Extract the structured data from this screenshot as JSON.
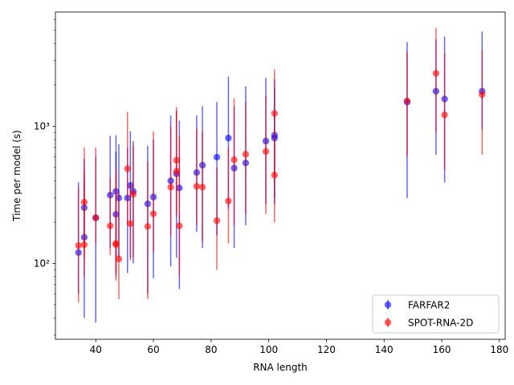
{
  "chart_data": {
    "type": "scatter",
    "title": "",
    "xlabel": "RNA length",
    "ylabel": "Time per model (s)",
    "xlim": [
      26,
      182
    ],
    "ylim": [
      28,
      6800
    ],
    "yscale": "log",
    "xticks": [
      40,
      60,
      80,
      100,
      120,
      140,
      160,
      180
    ],
    "yticks": [
      100,
      1000
    ],
    "ytick_labels": [
      "10²",
      "10³"
    ],
    "grid": false,
    "legend_position": "lower-right",
    "series": [
      {
        "name": "FARFAR2",
        "color": "#0000ff",
        "points": [
          {
            "x": 34,
            "y": 120,
            "lo": 60,
            "hi": 390
          },
          {
            "x": 36,
            "y": 255,
            "lo": 130,
            "hi": 420
          },
          {
            "x": 36,
            "y": 155,
            "lo": 40,
            "hi": 580
          },
          {
            "x": 40,
            "y": 215,
            "lo": 37,
            "hi": 600
          },
          {
            "x": 45,
            "y": 315,
            "lo": 130,
            "hi": 850
          },
          {
            "x": 47,
            "y": 335,
            "lo": 110,
            "hi": 860
          },
          {
            "x": 47,
            "y": 228,
            "lo": 80,
            "hi": 650
          },
          {
            "x": 48,
            "y": 300,
            "lo": 110,
            "hi": 740
          },
          {
            "x": 51,
            "y": 300,
            "lo": 85,
            "hi": 700
          },
          {
            "x": 52,
            "y": 370,
            "lo": 110,
            "hi": 920
          },
          {
            "x": 53,
            "y": 335,
            "lo": 100,
            "hi": 780
          },
          {
            "x": 58,
            "y": 272,
            "lo": 60,
            "hi": 720
          },
          {
            "x": 60,
            "y": 305,
            "lo": 78,
            "hi": 800
          },
          {
            "x": 66,
            "y": 400,
            "lo": 95,
            "hi": 1200
          },
          {
            "x": 68,
            "y": 450,
            "lo": 110,
            "hi": 1300
          },
          {
            "x": 69,
            "y": 355,
            "lo": 65,
            "hi": 1100
          },
          {
            "x": 75,
            "y": 460,
            "lo": 170,
            "hi": 1200
          },
          {
            "x": 77,
            "y": 520,
            "lo": 130,
            "hi": 1400
          },
          {
            "x": 82,
            "y": 595,
            "lo": 160,
            "hi": 1500
          },
          {
            "x": 86,
            "y": 820,
            "lo": 250,
            "hi": 2300
          },
          {
            "x": 88,
            "y": 495,
            "lo": 130,
            "hi": 1400
          },
          {
            "x": 92,
            "y": 540,
            "lo": 190,
            "hi": 1950
          },
          {
            "x": 99,
            "y": 780,
            "lo": 270,
            "hi": 2250
          },
          {
            "x": 102,
            "y": 860,
            "lo": 270,
            "hi": 2200
          },
          {
            "x": 102,
            "y": 820,
            "lo": 300,
            "hi": 1900
          },
          {
            "x": 148,
            "y": 1500,
            "lo": 300,
            "hi": 4100
          },
          {
            "x": 158,
            "y": 1800,
            "lo": 620,
            "hi": 4300
          },
          {
            "x": 161,
            "y": 1580,
            "lo": 390,
            "hi": 4500
          },
          {
            "x": 174,
            "y": 1800,
            "lo": 950,
            "hi": 4900
          }
        ]
      },
      {
        "name": "SPOT-RNA-2D",
        "color": "#ff0000",
        "points": [
          {
            "x": 34,
            "y": 135,
            "lo": 52,
            "hi": 360
          },
          {
            "x": 36,
            "y": 280,
            "lo": 110,
            "hi": 700
          },
          {
            "x": 36,
            "y": 137,
            "lo": 80,
            "hi": 480
          },
          {
            "x": 40,
            "y": 215,
            "lo": 140,
            "hi": 700
          },
          {
            "x": 45,
            "y": 188,
            "lo": 115,
            "hi": 420
          },
          {
            "x": 47,
            "y": 140,
            "lo": 75,
            "hi": 500
          },
          {
            "x": 47,
            "y": 137,
            "lo": 85,
            "hi": 450
          },
          {
            "x": 48,
            "y": 108,
            "lo": 55,
            "hi": 330
          },
          {
            "x": 51,
            "y": 490,
            "lo": 190,
            "hi": 1270
          },
          {
            "x": 52,
            "y": 195,
            "lo": 105,
            "hi": 380
          },
          {
            "x": 53,
            "y": 320,
            "lo": 110,
            "hi": 720
          },
          {
            "x": 58,
            "y": 186,
            "lo": 55,
            "hi": 550
          },
          {
            "x": 60,
            "y": 230,
            "lo": 120,
            "hi": 920
          },
          {
            "x": 66,
            "y": 360,
            "lo": 160,
            "hi": 1000
          },
          {
            "x": 68,
            "y": 565,
            "lo": 230,
            "hi": 1380
          },
          {
            "x": 68,
            "y": 470,
            "lo": 220,
            "hi": 1300
          },
          {
            "x": 69,
            "y": 188,
            "lo": 80,
            "hi": 850
          },
          {
            "x": 75,
            "y": 365,
            "lo": 190,
            "hi": 960
          },
          {
            "x": 77,
            "y": 360,
            "lo": 145,
            "hi": 920
          },
          {
            "x": 82,
            "y": 205,
            "lo": 90,
            "hi": 500
          },
          {
            "x": 86,
            "y": 285,
            "lo": 140,
            "hi": 700
          },
          {
            "x": 88,
            "y": 570,
            "lo": 190,
            "hi": 1600
          },
          {
            "x": 92,
            "y": 625,
            "lo": 230,
            "hi": 1500
          },
          {
            "x": 99,
            "y": 655,
            "lo": 230,
            "hi": 1650
          },
          {
            "x": 102,
            "y": 1240,
            "lo": 400,
            "hi": 2600
          },
          {
            "x": 102,
            "y": 440,
            "lo": 200,
            "hi": 950
          },
          {
            "x": 148,
            "y": 1530,
            "lo": 600,
            "hi": 3500
          },
          {
            "x": 158,
            "y": 2430,
            "lo": 900,
            "hi": 5200
          },
          {
            "x": 161,
            "y": 1210,
            "lo": 480,
            "hi": 3400
          },
          {
            "x": 174,
            "y": 1700,
            "lo": 620,
            "hi": 3600
          }
        ]
      }
    ]
  }
}
